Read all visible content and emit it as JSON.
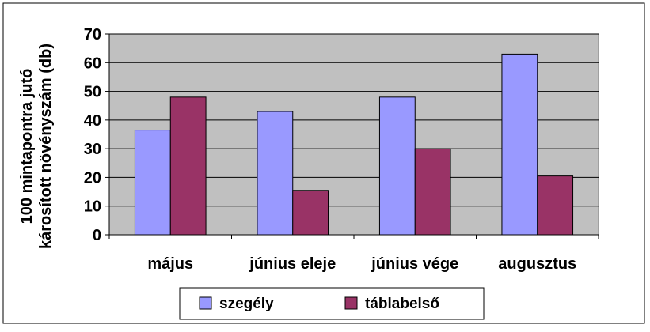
{
  "chart_data": {
    "type": "bar",
    "title": "",
    "xlabel": "",
    "ylabel_lines": [
      "100 mintapontra jutó",
      "károsított növényszám (db)"
    ],
    "categories": [
      "május",
      "június eleje",
      "június vége",
      "augusztus"
    ],
    "series": [
      {
        "name": "szegély",
        "values": [
          36.5,
          43,
          48,
          63
        ],
        "color": "#9999ff"
      },
      {
        "name": "táblabelső",
        "values": [
          48,
          15.5,
          30,
          20.5
        ],
        "color": "#993366"
      }
    ],
    "ylim": [
      0,
      70
    ],
    "yticks": [
      "0",
      "10",
      "20",
      "30",
      "40",
      "50",
      "60",
      "70"
    ],
    "grid": true,
    "legend_position": "bottom",
    "plot_background": "#c0c0c0"
  }
}
